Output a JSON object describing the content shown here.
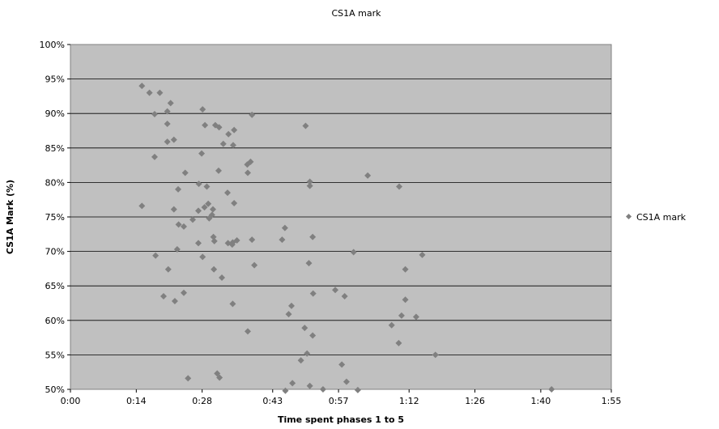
{
  "chart_data": {
    "type": "scatter",
    "title": "CS1A mark",
    "xlabel": "Time spent phases 1 to 5",
    "ylabel": "CS1A Mark (%)",
    "x_unit": "minutes",
    "xlim": [
      0,
      115
    ],
    "ylim": [
      50,
      100
    ],
    "x_tick_values": [
      0,
      14,
      28,
      43,
      57,
      72,
      86,
      100,
      115
    ],
    "x_tick_labels": [
      "0:00",
      "0:14",
      "0:28",
      "0:43",
      "0:57",
      "1:12",
      "1:26",
      "1:40",
      "1:55"
    ],
    "y_tick_values": [
      50,
      55,
      60,
      65,
      70,
      75,
      80,
      85,
      90,
      95,
      100
    ],
    "y_tick_labels": [
      "50%",
      "55%",
      "60%",
      "65%",
      "70%",
      "75%",
      "80%",
      "85%",
      "90%",
      "95%",
      "100%"
    ],
    "grid": "horizontal",
    "legend": "right",
    "colors": {
      "plot_bg": "#c0c0c0",
      "marker": "#808080",
      "grid": "#000000"
    },
    "series": [
      {
        "name": "CS1A mark",
        "marker": "diamond",
        "points": [
          [
            15.2,
            94.0
          ],
          [
            16.8,
            93.0
          ],
          [
            19.0,
            93.0
          ],
          [
            17.9,
            89.9
          ],
          [
            20.6,
            90.3
          ],
          [
            21.3,
            91.5
          ],
          [
            20.6,
            88.5
          ],
          [
            22.0,
            86.2
          ],
          [
            20.6,
            85.9
          ],
          [
            17.9,
            83.7
          ],
          [
            15.2,
            76.6
          ],
          [
            18.1,
            69.4
          ],
          [
            20.8,
            67.4
          ],
          [
            19.8,
            63.5
          ],
          [
            22.0,
            76.1
          ],
          [
            22.9,
            79.0
          ],
          [
            24.4,
            81.4
          ],
          [
            23.0,
            73.9
          ],
          [
            24.1,
            73.6
          ],
          [
            22.7,
            70.3
          ],
          [
            24.1,
            64.0
          ],
          [
            22.2,
            62.8
          ],
          [
            25.0,
            51.6
          ],
          [
            28.1,
            90.6
          ],
          [
            28.6,
            88.3
          ],
          [
            30.8,
            88.3
          ],
          [
            31.6,
            88.0
          ],
          [
            27.9,
            84.2
          ],
          [
            29.0,
            79.4
          ],
          [
            27.3,
            79.8
          ],
          [
            26.0,
            74.6
          ],
          [
            27.2,
            75.9
          ],
          [
            28.5,
            76.4
          ],
          [
            29.3,
            76.9
          ],
          [
            30.3,
            76.1
          ],
          [
            30.1,
            75.3
          ],
          [
            29.5,
            74.8
          ],
          [
            27.2,
            71.2
          ],
          [
            30.4,
            72.1
          ],
          [
            30.6,
            71.5
          ],
          [
            28.1,
            69.2
          ],
          [
            30.5,
            67.4
          ],
          [
            32.2,
            66.2
          ],
          [
            31.2,
            52.3
          ],
          [
            31.7,
            51.7
          ],
          [
            33.6,
            87.0
          ],
          [
            34.8,
            87.6
          ],
          [
            32.5,
            85.6
          ],
          [
            34.6,
            85.4
          ],
          [
            31.5,
            81.7
          ],
          [
            37.6,
            82.6
          ],
          [
            38.3,
            83.0
          ],
          [
            37.7,
            81.4
          ],
          [
            33.4,
            78.5
          ],
          [
            34.8,
            77.0
          ],
          [
            38.6,
            89.8
          ],
          [
            33.5,
            71.2
          ],
          [
            34.4,
            71.0
          ],
          [
            35.4,
            71.6
          ],
          [
            34.5,
            71.3
          ],
          [
            38.6,
            71.7
          ],
          [
            39.1,
            68.0
          ],
          [
            34.5,
            62.4
          ],
          [
            37.7,
            58.4
          ],
          [
            45.0,
            71.7
          ],
          [
            45.6,
            73.4
          ],
          [
            46.4,
            60.9
          ],
          [
            47.0,
            62.1
          ],
          [
            50.0,
            88.2
          ],
          [
            50.9,
            80.1
          ],
          [
            50.9,
            79.5
          ],
          [
            51.5,
            72.1
          ],
          [
            50.7,
            68.3
          ],
          [
            51.6,
            63.9
          ],
          [
            49.8,
            58.9
          ],
          [
            51.5,
            57.8
          ],
          [
            49.0,
            54.2
          ],
          [
            50.3,
            55.2
          ],
          [
            47.2,
            50.9
          ],
          [
            50.9,
            50.5
          ],
          [
            45.7,
            49.8
          ],
          [
            53.7,
            50.0
          ],
          [
            56.3,
            64.4
          ],
          [
            58.3,
            63.5
          ],
          [
            57.7,
            53.6
          ],
          [
            58.7,
            51.1
          ],
          [
            60.2,
            69.9
          ],
          [
            61.1,
            49.9
          ],
          [
            63.2,
            81.0
          ],
          [
            69.9,
            79.4
          ],
          [
            71.2,
            67.4
          ],
          [
            70.4,
            60.7
          ],
          [
            71.2,
            63.0
          ],
          [
            73.5,
            60.5
          ],
          [
            74.8,
            69.5
          ],
          [
            68.3,
            59.3
          ],
          [
            69.8,
            56.7
          ],
          [
            77.6,
            55.0
          ],
          [
            102.3,
            50.0
          ]
        ]
      }
    ]
  }
}
